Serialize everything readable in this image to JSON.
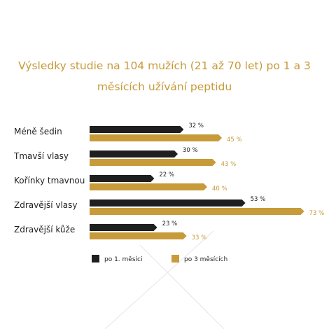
{
  "colors": {
    "after_1_month": "#1f1f1f",
    "after_3_months": "#c79a3a",
    "title": "#c79a3a",
    "deco_line": "#e6e6e6"
  },
  "chart_data": {
    "type": "bar",
    "orientation": "horizontal",
    "title_lines": [
      "Výsledky studie na 104 mužích (21 až 70 let) po 1 a 3",
      "měsících užívání peptidu"
    ],
    "categories": [
      "Méně šedin",
      "Tmavší vlasy",
      "Kořínky tmavnou",
      "Zdravější vlasy",
      "Zdravější kůže"
    ],
    "series": [
      {
        "name": "po 1. měsíci",
        "values": [
          32,
          30,
          22,
          53,
          23
        ],
        "labels": [
          "32 %",
          "30 %",
          "22 %",
          "53 %",
          "23 %"
        ]
      },
      {
        "name": "po 3 měsících",
        "values": [
          45,
          43,
          40,
          73,
          33
        ],
        "labels": [
          "45 %",
          "43 %",
          "40 %",
          "73 %",
          "33 %"
        ]
      }
    ],
    "unit": "%",
    "xlim": [
      0,
      100
    ],
    "legend_position": "bottom",
    "grid": false
  }
}
